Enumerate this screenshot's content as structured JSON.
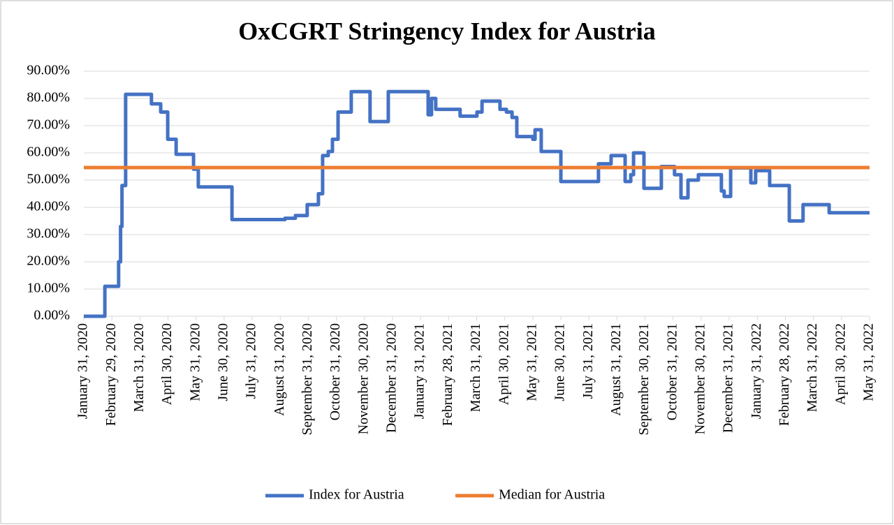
{
  "chart_data": {
    "type": "line",
    "title": "OxCGRT Stringency Index for Austria",
    "xlim": [
      0,
      28
    ],
    "xticks": [
      {
        "value": 0,
        "label": "January 31, 2020"
      },
      {
        "value": 1,
        "label": "February 29, 2020"
      },
      {
        "value": 2,
        "label": "March 31, 2020"
      },
      {
        "value": 3,
        "label": "April 30, 2020"
      },
      {
        "value": 4,
        "label": "May 31, 2020"
      },
      {
        "value": 5,
        "label": "June 30, 2020"
      },
      {
        "value": 6,
        "label": "July 31, 2020"
      },
      {
        "value": 7,
        "label": "August 31, 2020"
      },
      {
        "value": 8,
        "label": "September 31, 2020"
      },
      {
        "value": 9,
        "label": "October 31, 2020"
      },
      {
        "value": 10,
        "label": "November 30, 2020"
      },
      {
        "value": 11,
        "label": "December 31, 2020"
      },
      {
        "value": 12,
        "label": "January 31, 2021"
      },
      {
        "value": 13,
        "label": "February 28, 2021"
      },
      {
        "value": 14,
        "label": "March 31, 2021"
      },
      {
        "value": 15,
        "label": "April 30, 2021"
      },
      {
        "value": 16,
        "label": "May 31, 2021"
      },
      {
        "value": 17,
        "label": "June 30, 2021"
      },
      {
        "value": 18,
        "label": "July 31, 2021"
      },
      {
        "value": 19,
        "label": "August 31, 2021"
      },
      {
        "value": 20,
        "label": "September 30, 2021"
      },
      {
        "value": 21,
        "label": "October 31, 2021"
      },
      {
        "value": 22,
        "label": "November 30, 2021"
      },
      {
        "value": 23,
        "label": "December 31, 2021"
      },
      {
        "value": 24,
        "label": "January 31, 2022"
      },
      {
        "value": 25,
        "label": "February 28, 2022"
      },
      {
        "value": 26,
        "label": "March 31, 2022"
      },
      {
        "value": 27,
        "label": "April 30, 2022"
      },
      {
        "value": 28,
        "label": "May 31, 2022"
      }
    ],
    "ylim": [
      0,
      90
    ],
    "yticks": [
      {
        "value": 0,
        "label": "0.00%"
      },
      {
        "value": 10,
        "label": "10.00%"
      },
      {
        "value": 20,
        "label": "20.00%"
      },
      {
        "value": 30,
        "label": "30.00%"
      },
      {
        "value": 40,
        "label": "40.00%"
      },
      {
        "value": 50,
        "label": "50.00%"
      },
      {
        "value": 60,
        "label": "60.00%"
      },
      {
        "value": 70,
        "label": "70.00%"
      },
      {
        "value": 80,
        "label": "80.00%"
      },
      {
        "value": 90,
        "label": "90.00%"
      }
    ],
    "grid": true,
    "legend": "bottom",
    "series": [
      {
        "name": "Index for Austria",
        "color": "#4472c4",
        "x": [
          0,
          0.75,
          0.75,
          1.24,
          1.24,
          1.31,
          1.31,
          1.36,
          1.36,
          1.49,
          1.49,
          2.41,
          2.41,
          2.74,
          2.74,
          2.99,
          2.99,
          3.29,
          3.29,
          3.91,
          3.91,
          4.08,
          4.08,
          5.28,
          5.28,
          7.17,
          7.17,
          7.54,
          7.54,
          7.96,
          7.96,
          8.36,
          8.36,
          8.51,
          8.51,
          8.71,
          8.71,
          8.86,
          8.86,
          9.06,
          9.06,
          9.53,
          9.53,
          10.2,
          10.2,
          10.85,
          10.85,
          12.27,
          12.27,
          12.39,
          12.39,
          12.54,
          12.54,
          13.41,
          13.41,
          14.01,
          14.01,
          14.19,
          14.19,
          14.83,
          14.83,
          15.06,
          15.06,
          15.26,
          15.26,
          15.43,
          15.43,
          16,
          16,
          16.08,
          16.08,
          16.3,
          16.3,
          17,
          17,
          18.34,
          18.34,
          18.79,
          18.79,
          19.29,
          19.29,
          19.49,
          19.49,
          19.59,
          19.59,
          19.96,
          19.96,
          20.58,
          20.58,
          21.05,
          21.05,
          21.28,
          21.28,
          21.53,
          21.53,
          21.9,
          21.9,
          22.72,
          22.72,
          22.82,
          22.82,
          23.05,
          23.05,
          23.77,
          23.77,
          23.94,
          23.94,
          24.44,
          24.44,
          25.14,
          25.14,
          25.63,
          25.63,
          26.56,
          26.56,
          28
        ],
        "values": [
          0,
          0,
          11,
          11,
          20,
          20,
          33,
          33,
          48,
          48,
          81.5,
          81.5,
          78,
          78,
          75,
          75,
          65,
          65,
          59.5,
          59.5,
          54,
          54,
          47.5,
          47.5,
          35.5,
          35.5,
          36,
          36,
          37,
          37,
          41,
          41,
          45,
          45,
          59,
          59,
          60.5,
          60.5,
          65,
          65,
          75,
          75,
          82.5,
          82.5,
          71.5,
          71.5,
          82.5,
          82.5,
          74,
          74,
          80,
          80,
          76,
          76,
          73.5,
          73.5,
          75,
          75,
          79,
          79,
          76,
          76,
          75,
          75,
          73,
          73,
          66,
          66,
          65,
          65,
          68.5,
          68.5,
          60.5,
          60.5,
          49.5,
          49.5,
          56,
          56,
          59,
          59,
          49.5,
          49.5,
          52,
          52,
          60,
          60,
          47,
          47,
          55,
          55,
          52,
          52,
          43.5,
          43.5,
          50,
          50,
          52,
          52,
          46,
          46,
          44,
          44,
          54.5,
          54.5,
          49,
          49,
          53.5,
          53.5,
          48,
          48,
          35,
          35,
          41,
          41,
          38,
          38
        ]
      },
      {
        "name": "Median for Austria",
        "color": "#ed7d31",
        "x": [
          0,
          28
        ],
        "values": [
          54.6,
          54.6
        ]
      }
    ]
  }
}
